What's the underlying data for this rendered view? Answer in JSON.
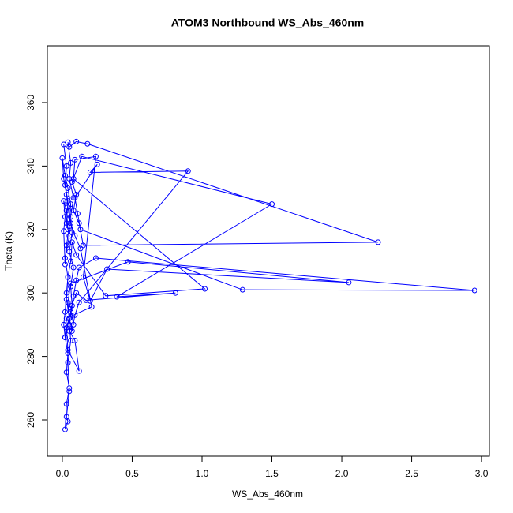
{
  "chart_data": {
    "type": "scatter",
    "lines": true,
    "title": "ATOM3 Northbound WS_Abs_460nm",
    "x_label": "WS_Abs_460nm",
    "y_label": "Theta (K)",
    "color": "#0000ff",
    "xlim": [
      -0.107,
      3.056
    ],
    "ylim": [
      248.56,
      377.9
    ],
    "xticks": [
      {
        "value": 0,
        "label": "0.0"
      },
      0.5,
      {
        "value": 1,
        "label": "1.0"
      },
      1.5,
      {
        "value": 2,
        "label": "2.0"
      },
      2.5,
      {
        "value": 3,
        "label": "3.0"
      }
    ],
    "yticks": [
      260,
      280,
      300,
      320,
      340,
      360
    ],
    "x": [
      0.01,
      0.03,
      0.02,
      0.04,
      0.03,
      0.05,
      0.02,
      0.04,
      0.03,
      0.05,
      0.02,
      0.04,
      0.03,
      0.05,
      0.03,
      0.02,
      0.04,
      0.03,
      0.05,
      0.04,
      0.06,
      0.05,
      0.07,
      0.06,
      0.08,
      0.05,
      0.07,
      0.06,
      0.08,
      0.05,
      0.06,
      0.04,
      0.05,
      0.1,
      0.18,
      2.26,
      0.15,
      0.12,
      0.08,
      0.1,
      0.07,
      0.14,
      1.5,
      0.39,
      0.81,
      0.17,
      0.1,
      0.06,
      0.08,
      0.05,
      0.09,
      0.12,
      0.04,
      0.03,
      0.06,
      0.08,
      0.1,
      0.12,
      0.24,
      2.95,
      1.29,
      0.13,
      0.11,
      0.09,
      0.25,
      0.2,
      0.9,
      0.12,
      0.09,
      0.07,
      0.05,
      0.04,
      0.06,
      0.47,
      2.05,
      0.32,
      0.2,
      0.15,
      0.24,
      0.09,
      0.08,
      1.02,
      0.31,
      0.1,
      0.07,
      0.06,
      0.04,
      0.03,
      0.02,
      0.01,
      0.02,
      0.03,
      0.21,
      0.13,
      0.09,
      0.06,
      0.04,
      0.03,
      0.01,
      0.0,
      0.02,
      0.04,
      0.06,
      0.05,
      0.03,
      0.02,
      0.01,
      0.02,
      0.01,
      0.03,
      0.04
    ],
    "values": [
      346.8,
      340,
      334,
      329,
      322,
      318,
      311,
      305,
      298,
      292,
      286,
      281,
      275,
      270,
      265,
      257,
      259.5,
      261,
      269,
      278,
      285,
      290,
      296,
      302,
      308,
      313,
      319,
      324,
      330,
      336,
      341,
      347.5,
      346,
      347.7,
      347,
      316,
      315,
      322,
      326,
      331,
      335,
      343,
      328,
      298.8,
      300,
      297.7,
      300,
      295,
      290,
      288,
      285,
      275.4,
      282,
      289,
      294,
      299,
      304,
      308,
      311,
      300.8,
      301,
      320,
      325,
      330,
      340.5,
      338,
      338.4,
      297,
      293,
      288,
      292,
      297,
      303,
      309.8,
      303.3,
      307.5,
      297.5,
      305,
      343,
      342,
      336,
      301.3,
      299.1,
      312,
      316,
      310,
      305,
      300,
      294,
      290,
      286,
      292,
      295.6,
      314,
      318,
      322,
      327,
      331,
      336,
      342.5,
      337,
      333,
      328,
      321,
      315,
      309,
      319.5,
      324,
      329,
      326,
      320
    ]
  }
}
